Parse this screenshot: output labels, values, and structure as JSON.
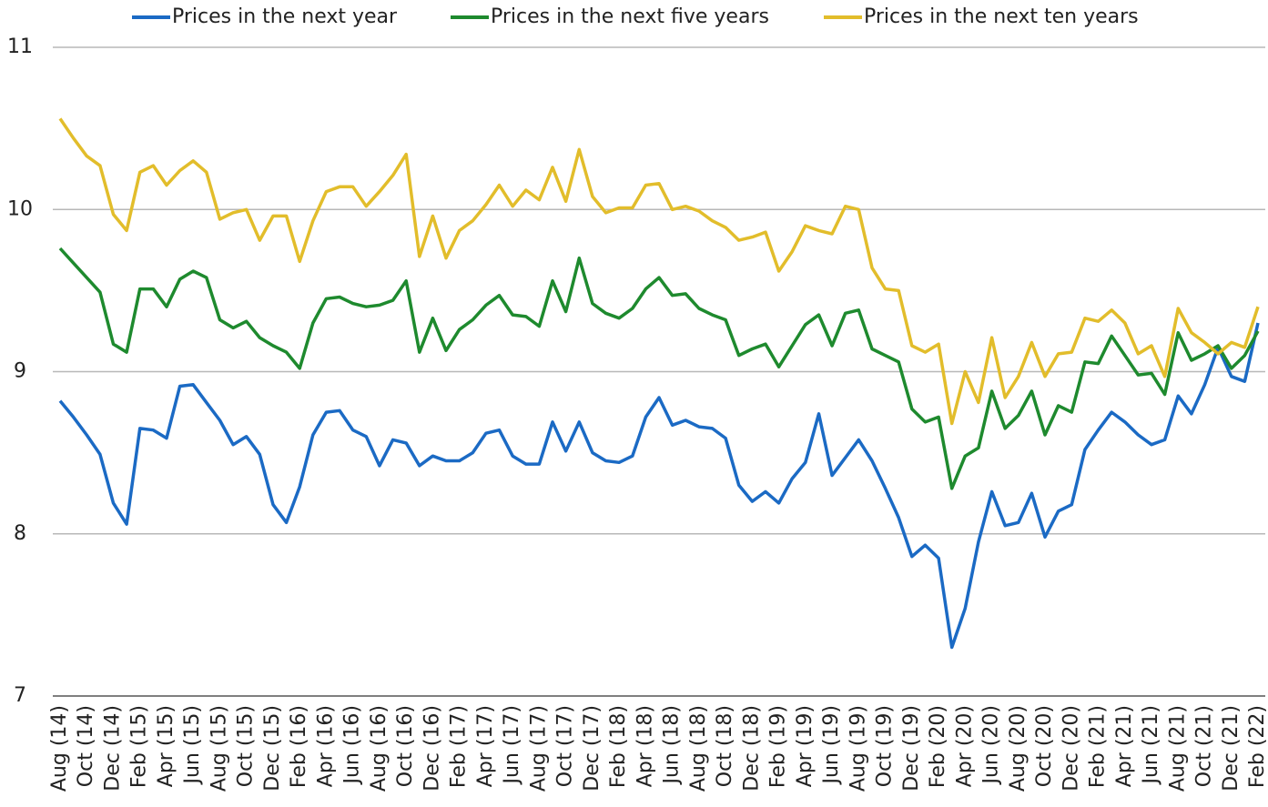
{
  "chart_data": {
    "type": "line",
    "categories": [
      "Aug (14)",
      null,
      "Oct (14)",
      null,
      "Dec (14)",
      null,
      "Feb (15)",
      null,
      "Apr (15)",
      null,
      "Jun (15)",
      null,
      "Aug (15)",
      null,
      "Oct (15)",
      null,
      "Dec (15)",
      null,
      "Feb (16)",
      null,
      "Apr (16)",
      null,
      "Jun (16)",
      null,
      "Aug (16)",
      null,
      "Oct (16)",
      null,
      "Dec (16)",
      null,
      "Feb (17)",
      null,
      "Apr (17)",
      null,
      "Jun (17)",
      null,
      "Aug (17)",
      null,
      "Oct (17)",
      null,
      "Dec (17)",
      null,
      "Feb (18)",
      null,
      "Apr (18)",
      null,
      "Jun (18)",
      null,
      "Aug (18)",
      null,
      "Oct (18)",
      null,
      "Dec (18)",
      null,
      "Feb (19)",
      null,
      "Apr (19)",
      null,
      "Jun (19)",
      null,
      "Aug (19)",
      null,
      "Oct (19)",
      null,
      "Dec (19)",
      null,
      "Feb (20)",
      null,
      "Apr (20)",
      null,
      "Jun (20)",
      null,
      "Aug (20)",
      null,
      "Oct (20)",
      null,
      "Dec (20)",
      null,
      "Feb (21)",
      null,
      "Apr (21)",
      null,
      "Jun (21)",
      null,
      "Aug (21)",
      null,
      "Oct (21)",
      null,
      "Dec (21)",
      null,
      "Feb (22)"
    ],
    "series": [
      {
        "name": "Prices in the next year",
        "color": "#1b6ac4",
        "values": [
          8.82,
          8.72,
          8.61,
          8.49,
          8.19,
          8.06,
          8.65,
          8.64,
          8.59,
          8.91,
          8.92,
          8.81,
          8.7,
          8.55,
          8.6,
          8.49,
          8.18,
          8.07,
          8.29,
          8.61,
          8.75,
          8.76,
          8.64,
          8.6,
          8.42,
          8.58,
          8.56,
          8.42,
          8.48,
          8.45,
          8.45,
          8.5,
          8.62,
          8.64,
          8.48,
          8.43,
          8.43,
          8.69,
          8.51,
          8.69,
          8.5,
          8.45,
          8.44,
          8.48,
          8.72,
          8.84,
          8.67,
          8.7,
          8.66,
          8.65,
          8.59,
          8.3,
          8.2,
          8.26,
          8.19,
          8.34,
          8.44,
          8.74,
          8.36,
          8.47,
          8.58,
          8.45,
          8.28,
          8.1,
          7.86,
          7.93,
          7.85,
          7.3,
          7.54,
          7.95,
          8.26,
          8.05,
          8.07,
          8.25,
          7.98,
          8.14,
          8.18,
          8.52,
          8.64,
          8.75,
          8.69,
          8.61,
          8.55,
          8.58,
          8.85,
          8.74,
          8.92,
          9.15,
          8.97,
          8.94,
          9.3
        ]
      },
      {
        "name": "Prices in the next five years",
        "color": "#1e8a2e",
        "values": [
          9.76,
          9.67,
          9.58,
          9.49,
          9.17,
          9.12,
          9.51,
          9.51,
          9.4,
          9.57,
          9.62,
          9.58,
          9.32,
          9.27,
          9.31,
          9.21,
          9.16,
          9.12,
          9.02,
          9.3,
          9.45,
          9.46,
          9.42,
          9.4,
          9.41,
          9.44,
          9.56,
          9.12,
          9.33,
          9.13,
          9.26,
          9.32,
          9.41,
          9.47,
          9.35,
          9.34,
          9.28,
          9.56,
          9.37,
          9.7,
          9.42,
          9.36,
          9.33,
          9.39,
          9.51,
          9.58,
          9.47,
          9.48,
          9.39,
          9.35,
          9.32,
          9.1,
          9.14,
          9.17,
          9.03,
          9.16,
          9.29,
          9.35,
          9.16,
          9.36,
          9.38,
          9.14,
          9.1,
          9.06,
          8.77,
          8.69,
          8.72,
          8.28,
          8.48,
          8.53,
          8.88,
          8.65,
          8.73,
          8.88,
          8.61,
          8.79,
          8.75,
          9.06,
          9.05,
          9.22,
          9.1,
          8.98,
          8.99,
          8.86,
          9.24,
          9.07,
          9.11,
          9.16,
          9.02,
          9.1,
          9.25
        ]
      },
      {
        "name": "Prices in the next ten years",
        "color": "#e2bd2b",
        "values": [
          10.56,
          10.44,
          10.33,
          10.27,
          9.97,
          9.87,
          10.23,
          10.27,
          10.15,
          10.24,
          10.3,
          10.23,
          9.94,
          9.98,
          10.0,
          9.81,
          9.96,
          9.96,
          9.68,
          9.93,
          10.11,
          10.14,
          10.14,
          10.02,
          10.11,
          10.21,
          10.34,
          9.71,
          9.96,
          9.7,
          9.87,
          9.93,
          10.03,
          10.15,
          10.02,
          10.12,
          10.06,
          10.26,
          10.05,
          10.37,
          10.08,
          9.98,
          10.01,
          10.01,
          10.15,
          10.16,
          10.0,
          10.02,
          9.99,
          9.93,
          9.89,
          9.81,
          9.83,
          9.86,
          9.62,
          9.74,
          9.9,
          9.87,
          9.85,
          10.02,
          10.0,
          9.64,
          9.51,
          9.5,
          9.16,
          9.12,
          9.17,
          8.68,
          9.0,
          8.81,
          9.21,
          8.84,
          8.97,
          9.18,
          8.97,
          9.11,
          9.12,
          9.33,
          9.31,
          9.38,
          9.3,
          9.11,
          9.16,
          8.97,
          9.39,
          9.24,
          9.18,
          9.11,
          9.18,
          9.15,
          9.4
        ]
      }
    ],
    "ylim": [
      7,
      11
    ],
    "yticks": [
      7,
      8,
      9,
      10,
      11
    ],
    "grid": true,
    "legend": "top"
  }
}
